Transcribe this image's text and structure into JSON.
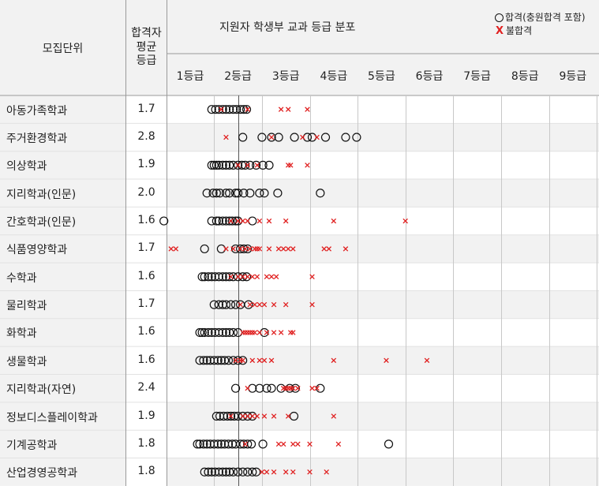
{
  "header": {
    "unit_label": "모집단위",
    "avg_label": [
      "합격자",
      "평균",
      "등급"
    ],
    "title": "지원자 학생부 교과 등급 분포",
    "legend_pass": "합격(충원합격 포함)",
    "legend_fail": "불합격",
    "legend_fail_symbol": "X",
    "grades": [
      "1등급",
      "2등급",
      "3등급",
      "4등급",
      "5등급",
      "6등급",
      "7등급",
      "8등급",
      "9등급"
    ]
  },
  "colors": {
    "pass": "#111111",
    "fail": "#e02020",
    "grid": "#c8c8c8",
    "stripe": "#f2f2f2",
    "label_bg": "#f2f2f2"
  },
  "rows": [
    {
      "label": "아동가족학과",
      "avg": "1.7"
    },
    {
      "label": "주거환경학과",
      "avg": "2.8"
    },
    {
      "label": "의상학과",
      "avg": "1.9"
    },
    {
      "label": "지리학과(인문)",
      "avg": "2.0"
    },
    {
      "label": "간호학과(인문)",
      "avg": "1.6"
    },
    {
      "label": "식품영양학과",
      "avg": "1.7"
    },
    {
      "label": "수학과",
      "avg": "1.6"
    },
    {
      "label": "물리학과",
      "avg": "1.7"
    },
    {
      "label": "화학과",
      "avg": "1.6"
    },
    {
      "label": "생물학과",
      "avg": "1.6"
    },
    {
      "label": "지리학과(자연)",
      "avg": "2.4"
    },
    {
      "label": "정보디스플레이학과",
      "avg": "1.9"
    },
    {
      "label": "기계공학과",
      "avg": "1.8"
    },
    {
      "label": "산업경영공학과",
      "avg": "1.8"
    }
  ],
  "chart_data": {
    "type": "scatter",
    "title": "지원자 학생부 교과 등급 분포",
    "xlabel": "",
    "ylabel": "",
    "x_ticks": [
      "1등급",
      "2등급",
      "3등급",
      "4등급",
      "5등급",
      "6등급",
      "7등급",
      "8등급",
      "9등급"
    ],
    "xlim": [
      1,
      9
    ],
    "categories": [
      "아동가족학과",
      "주거환경학과",
      "의상학과",
      "지리학과(인문)",
      "간호학과(인문)",
      "식품영양학과",
      "수학과",
      "물리학과",
      "화학과",
      "생물학과",
      "지리학과(자연)",
      "정보디스플레이학과",
      "기계공학과",
      "산업경영공학과"
    ],
    "series": [
      {
        "name": "합격(충원합격 포함)",
        "marker": "circle",
        "points": [
          [
            1.45,
            1.53,
            1.6,
            1.68,
            1.75,
            1.82,
            1.9,
            1.97,
            2.05,
            2.12,
            2.18
          ],
          [
            2.1,
            2.5,
            2.7,
            2.85,
            3.18,
            3.45,
            3.55,
            3.83,
            4.25,
            4.48
          ],
          [
            1.45,
            1.5,
            1.55,
            1.6,
            1.68,
            1.75,
            1.82,
            1.9,
            2.0,
            2.08,
            2.15,
            2.25,
            2.38,
            2.52,
            2.65
          ],
          [
            1.35,
            1.48,
            1.55,
            1.62,
            1.75,
            1.82,
            1.95,
            2.0,
            2.12,
            2.25,
            2.45,
            2.55,
            2.83,
            3.72
          ],
          [
            0.45,
            1.45,
            1.55,
            1.6,
            1.68,
            1.75,
            1.82,
            1.88,
            1.95,
            2.0,
            2.3
          ],
          [
            1.3,
            1.65,
            1.95,
            2.05,
            2.12,
            2.2
          ],
          [
            1.25,
            1.3,
            1.38,
            1.45,
            1.52,
            1.6,
            1.68,
            1.75,
            1.82,
            1.9,
            2.0,
            2.1,
            2.18
          ],
          [
            1.5,
            1.6,
            1.68,
            1.75,
            1.85,
            1.95,
            2.05,
            2.22
          ],
          [
            1.2,
            1.25,
            1.3,
            1.38,
            1.45,
            1.52,
            1.6,
            1.68,
            1.75,
            1.82,
            1.9,
            2.0,
            2.55
          ],
          [
            1.2,
            1.28,
            1.35,
            1.42,
            1.5,
            1.58,
            1.65,
            1.72,
            1.8,
            1.9,
            2.0,
            2.1
          ],
          [
            1.95,
            2.3,
            2.45,
            2.6,
            2.7,
            2.9,
            3.08,
            3.2,
            3.72
          ],
          [
            1.55,
            1.62,
            1.7,
            1.78,
            1.85,
            1.92,
            2.0,
            2.1,
            2.2,
            2.3,
            3.17
          ],
          [
            1.15,
            1.2,
            1.28,
            1.35,
            1.42,
            1.5,
            1.58,
            1.65,
            1.72,
            1.8,
            1.88,
            1.95,
            2.05,
            2.12,
            2.2,
            2.28,
            2.52,
            5.15
          ],
          [
            1.3,
            1.38,
            1.45,
            1.52,
            1.6,
            1.68,
            1.75,
            1.82,
            1.9,
            2.0,
            2.1,
            2.2,
            2.3,
            2.38
          ]
        ]
      },
      {
        "name": "불합격",
        "marker": "x",
        "points": [
          [
            1.65,
            2.2,
            2.9,
            3.05,
            3.45
          ],
          [
            1.75,
            2.7,
            3.35,
            3.65
          ],
          [
            2.0,
            2.2,
            2.4,
            3.05,
            3.1,
            3.45
          ],
          [],
          [
            1.85,
            2.0,
            2.1,
            2.2,
            2.45,
            2.65,
            3.0,
            4.0,
            5.5
          ],
          [
            0.6,
            0.7,
            1.75,
            1.9,
            2.05,
            2.15,
            2.25,
            2.35,
            2.4,
            2.45,
            2.65,
            2.85,
            2.95,
            3.05,
            3.15,
            3.8,
            3.9,
            4.25
          ],
          [
            1.85,
            2.0,
            2.1,
            2.2,
            2.3,
            2.4,
            2.6,
            2.7,
            2.8,
            3.55
          ],
          [
            2.05,
            2.25,
            2.35,
            2.45,
            2.55,
            2.75,
            3.0,
            3.55
          ],
          [
            2.1,
            2.15,
            2.2,
            2.25,
            2.3,
            2.35,
            2.45,
            2.6,
            2.75,
            2.9,
            3.1,
            3.15
          ],
          [
            1.95,
            2.05,
            2.1,
            2.3,
            2.45,
            2.55,
            2.7,
            4.0,
            5.1,
            5.95
          ],
          [
            2.2,
            2.95,
            3.0,
            3.05,
            3.1,
            3.15,
            3.25,
            3.55,
            3.65
          ],
          [
            1.85,
            2.1,
            2.2,
            2.3,
            2.4,
            2.55,
            2.75,
            3.05,
            4.0
          ],
          [
            2.15,
            2.85,
            2.95,
            3.15,
            3.25,
            3.5,
            4.1
          ],
          [
            2.5,
            2.6,
            2.75,
            3.0,
            3.15,
            3.5,
            3.85
          ]
        ]
      }
    ]
  }
}
